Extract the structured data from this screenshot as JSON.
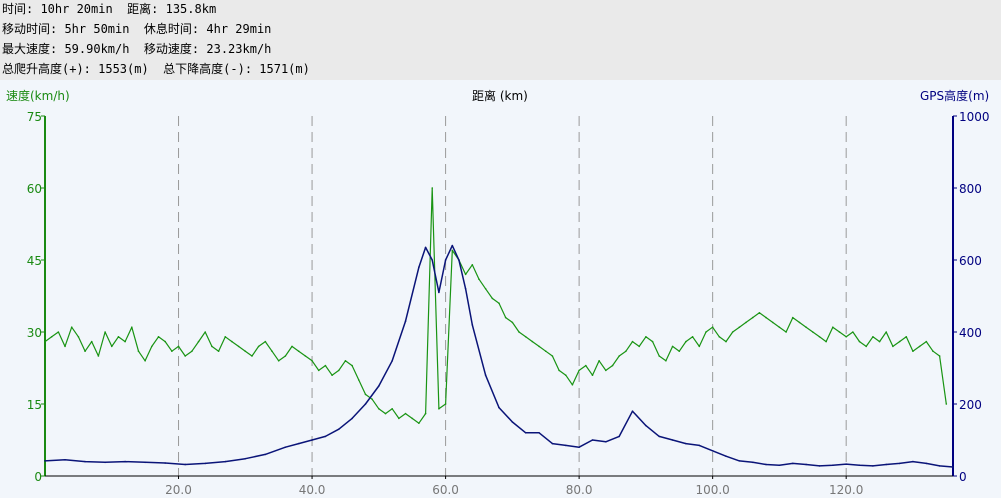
{
  "stats": {
    "line1": "时间: 10hr 20min  距离: 135.8km",
    "line2": "移动时间: 5hr 50min  休息时间: 4hr 29min",
    "line3": "最大速度: 59.90km/h  移动速度: 23.23km/h",
    "line4": "总爬升高度(+): 1553(m)  总下降高度(-): 1571(m)"
  },
  "colors": {
    "speed": "#199413",
    "altitude": "#0a1478",
    "grid": "#9a9a9a",
    "axis_speed": "#1a8a12",
    "axis_altitude": "#000080",
    "x_tick": "#777777"
  },
  "chart_data": {
    "type": "line",
    "xlabel": "距离 (km)",
    "ylabel": "速度(km/h)",
    "y2label": "GPS高度(m)",
    "xlim": [
      0,
      136
    ],
    "ylim": [
      0,
      75
    ],
    "y2lim": [
      0,
      1000
    ],
    "x_ticks": [
      "20.0",
      "40.0",
      "60.0",
      "80.0",
      "100.0",
      "120.0"
    ],
    "x_tick_values": [
      20,
      40,
      60,
      80,
      100,
      120
    ],
    "y_ticks": [
      "0",
      "15",
      "30",
      "45",
      "60",
      "75"
    ],
    "y2_ticks": [
      "0",
      "200",
      "400",
      "600",
      "800",
      "1000"
    ],
    "grid": "vertical dashed",
    "series": [
      {
        "name": "速度(km/h)",
        "axis": "left",
        "x": [
          0,
          1,
          2,
          3,
          4,
          5,
          6,
          7,
          8,
          9,
          10,
          11,
          12,
          13,
          14,
          15,
          16,
          17,
          18,
          19,
          20,
          21,
          22,
          23,
          24,
          25,
          26,
          27,
          28,
          29,
          30,
          31,
          32,
          33,
          34,
          35,
          36,
          37,
          38,
          39,
          40,
          41,
          42,
          43,
          44,
          45,
          46,
          47,
          48,
          49,
          50,
          51,
          52,
          53,
          54,
          55,
          56,
          57,
          58,
          59,
          60,
          61,
          62,
          63,
          64,
          65,
          66,
          67,
          68,
          69,
          70,
          71,
          72,
          73,
          74,
          75,
          76,
          77,
          78,
          79,
          80,
          81,
          82,
          83,
          84,
          85,
          86,
          87,
          88,
          89,
          90,
          91,
          92,
          93,
          94,
          95,
          96,
          97,
          98,
          99,
          100,
          101,
          102,
          103,
          104,
          105,
          106,
          107,
          108,
          109,
          110,
          111,
          112,
          113,
          114,
          115,
          116,
          117,
          118,
          119,
          120,
          121,
          122,
          123,
          124,
          125,
          126,
          127,
          128,
          129,
          130,
          131,
          132,
          133,
          134,
          135
        ],
        "y": [
          28,
          29,
          30,
          27,
          31,
          29,
          26,
          28,
          25,
          30,
          27,
          29,
          28,
          31,
          26,
          24,
          27,
          29,
          28,
          26,
          27,
          25,
          26,
          28,
          30,
          27,
          26,
          29,
          28,
          27,
          26,
          25,
          27,
          28,
          26,
          24,
          25,
          27,
          26,
          25,
          24,
          22,
          23,
          21,
          22,
          24,
          23,
          20,
          17,
          16,
          14,
          13,
          14,
          12,
          13,
          12,
          11,
          13,
          60,
          14,
          15,
          47,
          45,
          42,
          44,
          41,
          39,
          37,
          36,
          33,
          32,
          30,
          29,
          28,
          27,
          26,
          25,
          22,
          21,
          19,
          22,
          23,
          21,
          24,
          22,
          23,
          25,
          26,
          28,
          27,
          29,
          28,
          25,
          24,
          27,
          26,
          28,
          29,
          27,
          30,
          31,
          29,
          28,
          30,
          31,
          32,
          33,
          34,
          33,
          32,
          31,
          30,
          33,
          32,
          31,
          30,
          29,
          28,
          31,
          30,
          29,
          30,
          28,
          27,
          29,
          28,
          30,
          27,
          28,
          29,
          26,
          27,
          28,
          26,
          25,
          15
        ]
      },
      {
        "name": "GPS高度(m)",
        "axis": "right",
        "x": [
          0,
          3,
          6,
          9,
          12,
          15,
          18,
          21,
          24,
          27,
          30,
          33,
          36,
          38,
          40,
          42,
          44,
          46,
          48,
          50,
          52,
          54,
          56,
          57,
          58,
          59,
          60,
          61,
          62,
          63,
          64,
          66,
          68,
          70,
          72,
          74,
          76,
          78,
          80,
          82,
          84,
          86,
          88,
          90,
          92,
          94,
          96,
          98,
          100,
          102,
          104,
          106,
          108,
          110,
          112,
          114,
          116,
          118,
          120,
          122,
          124,
          126,
          128,
          130,
          132,
          134,
          136
        ],
        "y": [
          42,
          45,
          40,
          38,
          40,
          38,
          36,
          32,
          35,
          40,
          48,
          60,
          80,
          90,
          100,
          110,
          130,
          160,
          200,
          250,
          320,
          430,
          580,
          635,
          600,
          510,
          600,
          640,
          600,
          520,
          420,
          280,
          190,
          150,
          120,
          120,
          90,
          85,
          80,
          100,
          95,
          110,
          180,
          140,
          110,
          100,
          90,
          85,
          70,
          55,
          42,
          38,
          32,
          30,
          35,
          32,
          28,
          30,
          33,
          30,
          28,
          32,
          35,
          40,
          35,
          28,
          25
        ]
      }
    ]
  }
}
